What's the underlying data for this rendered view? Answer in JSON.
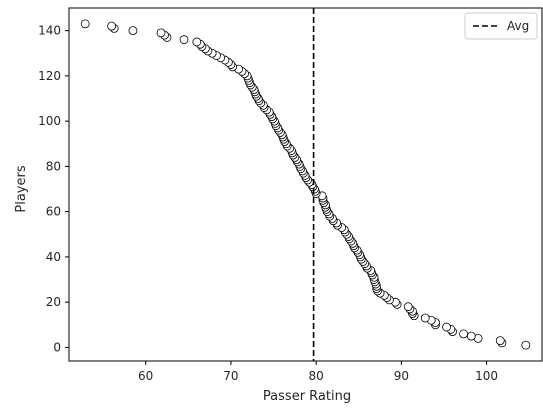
{
  "chart_data": {
    "type": "scatter",
    "title": "",
    "xlabel": "Passer Rating",
    "ylabel": "Players",
    "xlim": [
      51,
      106.5
    ],
    "ylim": [
      -6,
      150
    ],
    "xticks": [
      60,
      70,
      80,
      90,
      100
    ],
    "yticks": [
      0,
      20,
      40,
      60,
      80,
      100,
      120,
      140
    ],
    "grid": false,
    "legend": {
      "placement": "top-right",
      "entries": [
        "Avg"
      ]
    },
    "average_line": {
      "x": 79.7,
      "style": "dashed",
      "color": "#000000",
      "label": "Avg"
    },
    "series": [
      {
        "marker": "circle",
        "marker_face": "#ffffff",
        "marker_edge": "#000000",
        "points": [
          [
            104.6,
            1
          ],
          [
            101.8,
            2
          ],
          [
            101.6,
            3
          ],
          [
            99.0,
            4
          ],
          [
            98.2,
            5
          ],
          [
            97.3,
            6
          ],
          [
            96.0,
            7
          ],
          [
            95.8,
            8
          ],
          [
            95.3,
            9
          ],
          [
            94.0,
            10
          ],
          [
            94.0,
            11
          ],
          [
            93.5,
            12
          ],
          [
            92.8,
            13
          ],
          [
            91.5,
            14
          ],
          [
            91.3,
            15
          ],
          [
            91.3,
            16
          ],
          [
            91.0,
            17
          ],
          [
            90.8,
            18
          ],
          [
            89.5,
            19
          ],
          [
            89.3,
            20
          ],
          [
            88.6,
            21
          ],
          [
            88.3,
            22
          ],
          [
            88.0,
            23
          ],
          [
            87.5,
            24
          ],
          [
            87.2,
            25
          ],
          [
            87.1,
            26
          ],
          [
            87.1,
            27
          ],
          [
            87.0,
            28
          ],
          [
            86.9,
            29
          ],
          [
            86.8,
            30
          ],
          [
            86.8,
            31
          ],
          [
            86.6,
            32
          ],
          [
            86.5,
            33
          ],
          [
            86.4,
            34
          ],
          [
            86.0,
            35
          ],
          [
            85.9,
            36
          ],
          [
            85.7,
            37
          ],
          [
            85.5,
            38
          ],
          [
            85.3,
            39
          ],
          [
            85.2,
            40
          ],
          [
            85.1,
            41
          ],
          [
            84.9,
            42
          ],
          [
            84.8,
            43
          ],
          [
            84.5,
            44
          ],
          [
            84.4,
            45
          ],
          [
            84.3,
            46
          ],
          [
            84.1,
            47
          ],
          [
            83.9,
            48
          ],
          [
            83.8,
            49
          ],
          [
            83.6,
            50
          ],
          [
            83.4,
            51
          ],
          [
            83.3,
            52
          ],
          [
            83.0,
            53
          ],
          [
            82.5,
            54
          ],
          [
            82.4,
            55
          ],
          [
            82.0,
            56
          ],
          [
            81.9,
            57
          ],
          [
            81.6,
            58
          ],
          [
            81.5,
            59
          ],
          [
            81.3,
            60
          ],
          [
            81.2,
            61
          ],
          [
            81.1,
            62
          ],
          [
            81.1,
            63
          ],
          [
            80.9,
            64
          ],
          [
            80.8,
            65
          ],
          [
            80.8,
            66
          ],
          [
            80.7,
            67
          ],
          [
            80.0,
            68
          ],
          [
            79.9,
            69
          ],
          [
            79.8,
            70
          ],
          [
            79.6,
            71
          ],
          [
            79.5,
            72
          ],
          [
            79.2,
            73
          ],
          [
            79.0,
            74
          ],
          [
            78.8,
            75
          ],
          [
            78.7,
            76
          ],
          [
            78.5,
            77
          ],
          [
            78.4,
            78
          ],
          [
            78.2,
            79
          ],
          [
            78.1,
            80
          ],
          [
            78.0,
            81
          ],
          [
            77.8,
            82
          ],
          [
            77.7,
            83
          ],
          [
            77.5,
            84
          ],
          [
            77.3,
            85
          ],
          [
            77.2,
            86
          ],
          [
            77.1,
            87
          ],
          [
            76.9,
            88
          ],
          [
            76.6,
            89
          ],
          [
            76.5,
            90
          ],
          [
            76.3,
            91
          ],
          [
            76.2,
            92
          ],
          [
            76.1,
            93
          ],
          [
            76.0,
            94
          ],
          [
            75.8,
            95
          ],
          [
            75.6,
            96
          ],
          [
            75.5,
            97
          ],
          [
            75.3,
            98
          ],
          [
            75.2,
            99
          ],
          [
            75.1,
            100
          ],
          [
            74.9,
            101
          ],
          [
            74.8,
            102
          ],
          [
            74.6,
            103
          ],
          [
            74.5,
            104
          ],
          [
            74.2,
            105
          ],
          [
            73.9,
            106
          ],
          [
            73.8,
            107
          ],
          [
            73.5,
            108
          ],
          [
            73.3,
            109
          ],
          [
            73.2,
            110
          ],
          [
            73.0,
            111
          ],
          [
            72.9,
            112
          ],
          [
            72.8,
            113
          ],
          [
            72.7,
            114
          ],
          [
            72.5,
            115
          ],
          [
            72.3,
            116
          ],
          [
            72.2,
            117
          ],
          [
            72.1,
            118
          ],
          [
            72.0,
            119
          ],
          [
            71.9,
            120
          ],
          [
            71.6,
            121
          ],
          [
            71.3,
            122
          ],
          [
            70.9,
            123
          ],
          [
            70.2,
            124
          ],
          [
            70.0,
            125
          ],
          [
            69.7,
            126
          ],
          [
            69.3,
            127
          ],
          [
            68.8,
            128
          ],
          [
            68.3,
            129
          ],
          [
            67.8,
            130
          ],
          [
            67.3,
            131
          ],
          [
            67.0,
            132
          ],
          [
            66.6,
            133
          ],
          [
            66.4,
            134
          ],
          [
            66.0,
            135
          ],
          [
            64.5,
            136
          ],
          [
            62.5,
            137
          ],
          [
            62.2,
            138
          ],
          [
            61.8,
            139
          ],
          [
            58.5,
            140
          ],
          [
            56.3,
            141
          ],
          [
            56.0,
            142
          ],
          [
            52.9,
            143
          ]
        ]
      }
    ]
  }
}
